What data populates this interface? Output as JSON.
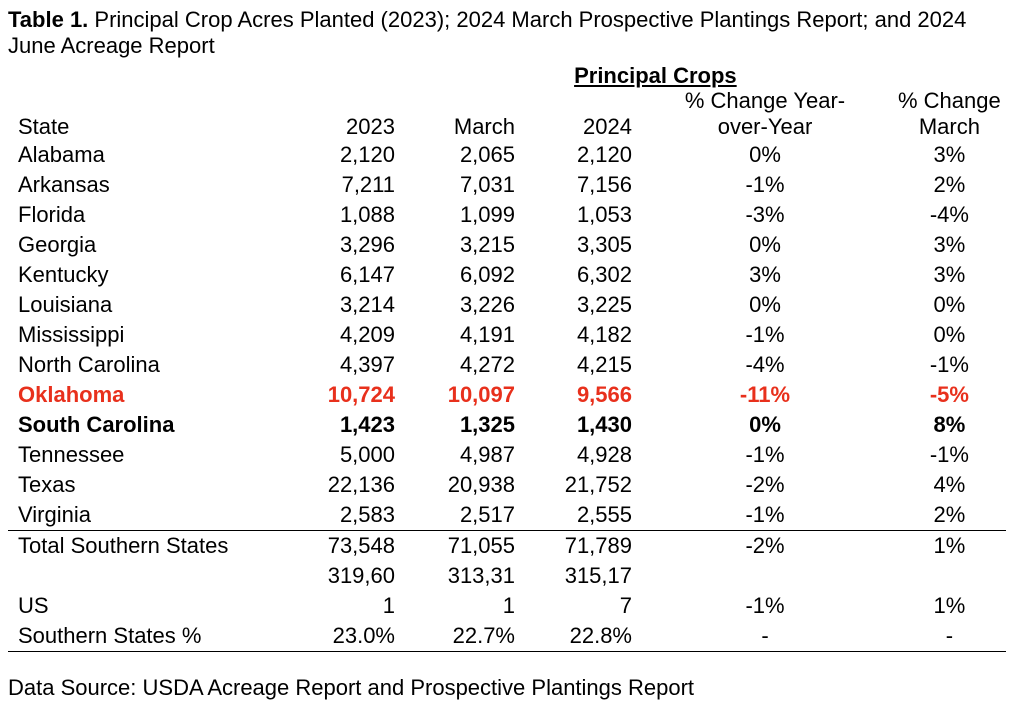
{
  "title": {
    "label": "Table 1.",
    "text": "Principal Crop Acres Planted (2023); 2024 March Prospective Plantings Report; and 2024 June Acreage Report"
  },
  "table": {
    "group_header": "Principal Crops",
    "columns": [
      [
        "State"
      ],
      [
        "2023"
      ],
      [
        "March"
      ],
      [
        "2024"
      ],
      [
        "% Change Year-",
        "over-Year"
      ],
      [
        "% Change",
        "March"
      ]
    ],
    "states": [
      {
        "cells": [
          "Alabama",
          "2,120",
          "2,065",
          "2,120",
          "0%",
          "3%"
        ]
      },
      {
        "cells": [
          "Arkansas",
          "7,211",
          "7,031",
          "7,156",
          "-1%",
          "2%"
        ]
      },
      {
        "cells": [
          "Florida",
          "1,088",
          "1,099",
          "1,053",
          "-3%",
          "-4%"
        ]
      },
      {
        "cells": [
          "Georgia",
          "3,296",
          "3,215",
          "3,305",
          "0%",
          "3%"
        ]
      },
      {
        "cells": [
          "Kentucky",
          "6,147",
          "6,092",
          "6,302",
          "3%",
          "3%"
        ]
      },
      {
        "cells": [
          "Louisiana",
          "3,214",
          "3,226",
          "3,225",
          "0%",
          "0%"
        ]
      },
      {
        "cells": [
          "Mississippi",
          "4,209",
          "4,191",
          "4,182",
          "-1%",
          "0%"
        ]
      },
      {
        "cells": [
          "North Carolina",
          "4,397",
          "4,272",
          "4,215",
          "-4%",
          "-1%"
        ]
      },
      {
        "cells": [
          "Oklahoma",
          "10,724",
          "10,097",
          "9,566",
          "-11%",
          "-5%"
        ],
        "emphasis": "red"
      },
      {
        "cells": [
          "South Carolina",
          "1,423",
          "1,325",
          "1,430",
          "0%",
          "8%"
        ],
        "emphasis": "bold"
      },
      {
        "cells": [
          "Tennessee",
          "5,000",
          "4,987",
          "4,928",
          "-1%",
          "-1%"
        ]
      },
      {
        "cells": [
          "Texas",
          "22,136",
          "20,938",
          "21,752",
          "-2%",
          "4%"
        ]
      },
      {
        "cells": [
          "Virginia",
          "2,583",
          "2,517",
          "2,555",
          "-1%",
          "2%"
        ]
      }
    ],
    "totals": [
      {
        "cells": [
          [
            "Total Southern States"
          ],
          [
            "73,548"
          ],
          [
            "71,055"
          ],
          [
            "71,789"
          ],
          [
            "-2%"
          ],
          [
            "1%"
          ]
        ]
      },
      {
        "cells": [
          [
            "US"
          ],
          [
            "319,60",
            "1"
          ],
          [
            "313,31",
            "1"
          ],
          [
            "315,17",
            "7"
          ],
          [
            "-1%"
          ],
          [
            "1%"
          ]
        ]
      },
      {
        "cells": [
          [
            "Southern States %"
          ],
          [
            "23.0%"
          ],
          [
            "22.7%"
          ],
          [
            "22.8%"
          ],
          [
            "-"
          ],
          [
            "-"
          ]
        ]
      }
    ]
  },
  "source": "Data Source: USDA Acreage Report and Prospective Plantings Report"
}
